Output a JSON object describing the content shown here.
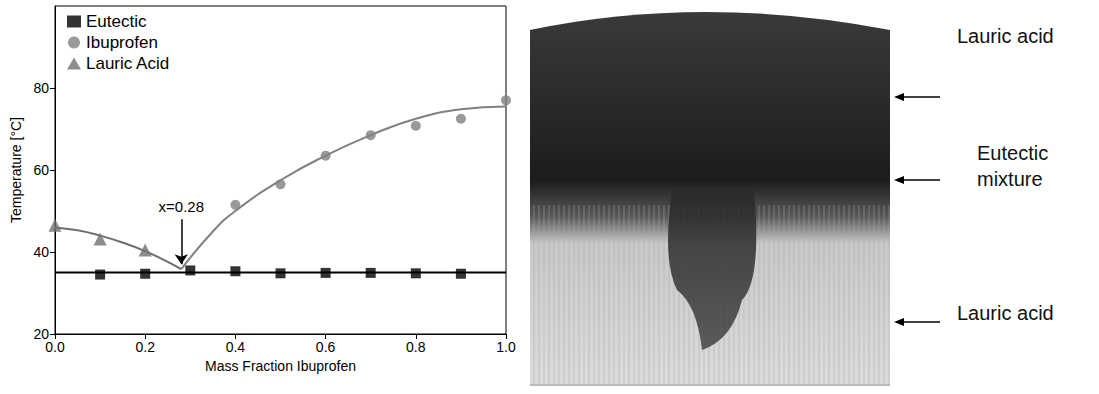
{
  "chart_data": {
    "type": "scatter",
    "x_label": "Mass Fraction Ibuprofen",
    "y_label": "Temperature [°C]",
    "xlim": [
      0,
      1
    ],
    "xticks": [
      {
        "value": 0,
        "label": "0.0"
      },
      0.2,
      0.4,
      0.6,
      0.8,
      {
        "value": 1,
        "label": "1.0"
      }
    ],
    "ylim": [
      20,
      100
    ],
    "yticks": [
      20,
      40,
      60,
      80
    ],
    "grid": false,
    "legend": "upper left",
    "series": [
      {
        "name": "Eutectic",
        "type": "scatter",
        "marker": "square",
        "color": "#000000",
        "x": [
          0.1,
          0.2,
          0.3,
          0.4,
          0.5,
          0.6,
          0.7,
          0.8,
          0.9
        ],
        "values": [
          34.5,
          34.7,
          35.5,
          35.3,
          34.8,
          34.9,
          34.9,
          34.8,
          34.7
        ]
      },
      {
        "name": "Ibuprofen",
        "type": "scatter",
        "marker": "circle",
        "color": "#808080",
        "x": [
          0.4,
          0.5,
          0.6,
          0.7,
          0.8,
          0.9,
          1.0
        ],
        "values": [
          51.5,
          56.5,
          63.5,
          68.5,
          70.8,
          72.5,
          77
        ]
      },
      {
        "name": "Lauric Acid",
        "type": "scatter",
        "marker": "triangle",
        "color": "#707070",
        "x": [
          0.0,
          0.1,
          0.2
        ],
        "values": [
          46.5,
          43.2,
          40.5
        ]
      },
      {
        "type": "line",
        "line_style": "solid",
        "color": "#000000",
        "x": [
          0,
          1
        ],
        "values": [
          35,
          35
        ]
      },
      {
        "type": "line",
        "line_style": "solid",
        "color": "#6e6e6e",
        "x": [
          0,
          0.05,
          0.1,
          0.15,
          0.2,
          0.25,
          0.28
        ],
        "values": [
          46,
          45.3,
          44,
          42.3,
          40.2,
          37.6,
          35.8
        ]
      },
      {
        "type": "line",
        "line_style": "solid",
        "color": "#808080",
        "x": [
          0.28,
          0.35,
          0.4,
          0.5,
          0.6,
          0.7,
          0.8,
          0.9,
          1.0
        ],
        "values": [
          35.8,
          45,
          50,
          57.5,
          63.5,
          68.5,
          72.5,
          74.8,
          75.5
        ]
      }
    ],
    "annotations": [
      {
        "text": "x=0.28",
        "x": 0.28,
        "y_from": 48,
        "y_to": 37
      }
    ]
  },
  "photo": {
    "labels": [
      "Lauric acid",
      "Eutectic mixture",
      "Lauric acid"
    ]
  }
}
